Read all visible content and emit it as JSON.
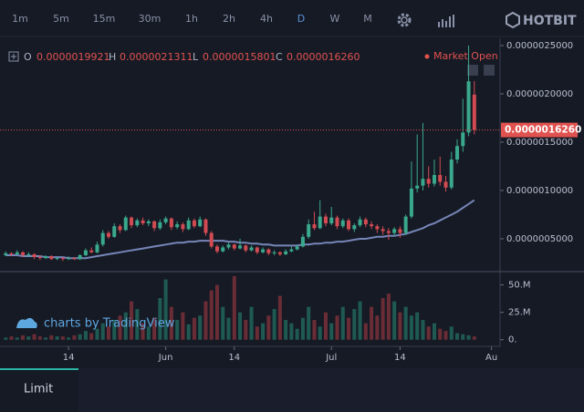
{
  "toolbar": {
    "intervals": [
      "1m",
      "5m",
      "15m",
      "30m",
      "1h",
      "2h",
      "4h",
      "D",
      "W",
      "M"
    ],
    "active_index": 7
  },
  "logo": "HOTBIT",
  "legend": {
    "o_label": "O",
    "o": "0.0000019921",
    "h_label": "H",
    "h": "0.0000021311",
    "l_label": "L",
    "l": "0.0000015801",
    "c_label": "C",
    "c": "0.0000016260"
  },
  "status": "Market Open",
  "watermark": "charts by TradingView",
  "footer_tab": "Limit",
  "chart_data": {
    "type": "candlestick",
    "up_color": "#3aa88c",
    "down_color": "#d24b52",
    "xlim": [
      -1,
      86.5
    ],
    "xticks": [
      {
        "value": 11,
        "label": "14"
      },
      {
        "value": 28,
        "label": "Jun"
      },
      {
        "value": 40,
        "label": "14"
      },
      {
        "value": 57,
        "label": "Jul"
      },
      {
        "value": 69,
        "label": "14"
      },
      {
        "value": 85,
        "label": "Au"
      }
    ],
    "ylim": [
      1.6e-07,
      2.575e-06
    ],
    "yticks": [
      {
        "value": 5e-07,
        "label": "0.0000005000"
      },
      {
        "value": 1e-06,
        "label": "0.0000010000"
      },
      {
        "value": 1.5e-06,
        "label": "0.0000015000"
      },
      {
        "value": 2e-06,
        "label": "0.0000020000"
      },
      {
        "value": 2.5e-06,
        "label": "0.0000025000"
      }
    ],
    "last_price": {
      "value": 1.626e-06,
      "label": "0.0000016260",
      "color": "#e0524f"
    },
    "open": [
      3.3e-07,
      3.5e-07,
      3.4e-07,
      3.6e-07,
      3.3e-07,
      3.4e-07,
      3.1e-07,
      3e-07,
      3.2e-07,
      2.9e-07,
      3e-07,
      2.9e-07,
      3e-07,
      2.9e-07,
      3.3e-07,
      3.8e-07,
      3.6e-07,
      4.4e-07,
      5.6e-07,
      5.2e-07,
      6.3e-07,
      5.9e-07,
      7.2e-07,
      6.4e-07,
      6.9e-07,
      6.6e-07,
      6.8e-07,
      6.1e-07,
      6.7e-07,
      7.1e-07,
      6.2e-07,
      6.5e-07,
      6e-07,
      6.9e-07,
      6.3e-07,
      7e-07,
      5.6e-07,
      4.2e-07,
      3.7e-07,
      4.1e-07,
      4.4e-07,
      4e-07,
      4.3e-07,
      3.8e-07,
      4.1e-07,
      3.6e-07,
      3.9e-07,
      3.5e-07,
      3.6e-07,
      3.4e-07,
      3.7e-07,
      3.9e-07,
      4.2e-07,
      5.2e-07,
      6.5e-07,
      6.1e-07,
      7.3e-07,
      6.6e-07,
      7.2e-07,
      6.3e-07,
      6.9e-07,
      6e-07,
      6.4e-07,
      7e-07,
      6.5e-07,
      6.3e-07,
      6e-07,
      5.8e-07,
      5.6e-07,
      6e-07,
      5.6e-07,
      7.3e-07,
      1.02e-06,
      1.05e-06,
      1.12e-06,
      1.07e-06,
      1.16e-06,
      1.09e-06,
      1.03e-06,
      1.32e-06,
      1.46e-06,
      1.6e-06,
      1.9921e-06
    ],
    "high": [
      3.7e-07,
      3.6e-07,
      3.8e-07,
      3.7e-07,
      3.6e-07,
      3.5e-07,
      3.3e-07,
      3.3e-07,
      3.3e-07,
      3.1e-07,
      3.1e-07,
      3.2e-07,
      3.1e-07,
      3.4e-07,
      4e-07,
      4.1e-07,
      4.7e-07,
      5.9e-07,
      5.8e-07,
      6.6e-07,
      6.5e-07,
      7.4e-07,
      7.3e-07,
      7.1e-07,
      7.2e-07,
      7e-07,
      6.9e-07,
      7e-07,
      7.3e-07,
      7.2e-07,
      6.8e-07,
      6.7e-07,
      7.2e-07,
      7.1e-07,
      7.3e-07,
      7.1e-07,
      5.8e-07,
      4.4e-07,
      4.3e-07,
      4.6e-07,
      4.5e-07,
      5e-07,
      4.4e-07,
      4.3e-07,
      4.2e-07,
      4.1e-07,
      4e-07,
      3.8e-07,
      3.7e-07,
      3.9e-07,
      4.2e-07,
      4.4e-07,
      5.5e-07,
      7e-07,
      7.8e-07,
      9e-07,
      7.6e-07,
      8.3e-07,
      7.4e-07,
      7.1e-07,
      7.1e-07,
      6.6e-07,
      7.3e-07,
      7.2e-07,
      6.8e-07,
      6.5e-07,
      6.3e-07,
      6.1e-07,
      6.2e-07,
      6.3e-07,
      7.5e-07,
      1.3e-06,
      1.58e-06,
      1.7e-06,
      1.25e-06,
      1.32e-06,
      1.35e-06,
      1.15e-06,
      1.4e-06,
      1.53e-06,
      1.95e-06,
      2.5e-06,
      2.1311e-06
    ],
    "low": [
      3.2e-07,
      3.2e-07,
      3.3e-07,
      3.1e-07,
      3.1e-07,
      2.9e-07,
      2.8e-07,
      2.9e-07,
      2.8e-07,
      2.8e-07,
      2.7e-07,
      2.8e-07,
      2.8e-07,
      2.8e-07,
      3.2e-07,
      3.5e-07,
      3.5e-07,
      4.2e-07,
      5e-07,
      5.1e-07,
      5.6e-07,
      5.8e-07,
      6.1e-07,
      6.2e-07,
      6.4e-07,
      6.3e-07,
      5.8e-07,
      5.9e-07,
      6.5e-07,
      5.9e-07,
      6e-07,
      5.7e-07,
      5.9e-07,
      6.1e-07,
      6.2e-07,
      5.3e-07,
      4e-07,
      3.5e-07,
      3.6e-07,
      3.9e-07,
      3.8e-07,
      3.9e-07,
      3.6e-07,
      3.7e-07,
      3.4e-07,
      3.5e-07,
      3.3e-07,
      3.3e-07,
      3.2e-07,
      3.3e-07,
      3.6e-07,
      3.8e-07,
      4.1e-07,
      5e-07,
      5.9e-07,
      6e-07,
      6.3e-07,
      6.4e-07,
      6e-07,
      6.1e-07,
      5.8e-07,
      5.7e-07,
      6.2e-07,
      6.2e-07,
      6e-07,
      5.6e-07,
      5.4e-07,
      4.9e-07,
      5.3e-07,
      5.1e-07,
      5.4e-07,
      7.1e-07,
      9.8e-07,
      1e-06,
      1.03e-06,
      1.04e-06,
      1.05e-06,
      9.9e-07,
      1.01e-06,
      1.28e-06,
      1.4e-06,
      1.56e-06,
      1.5801e-06
    ],
    "close": [
      3.5e-07,
      3.4e-07,
      3.6e-07,
      3.3e-07,
      3.4e-07,
      3.1e-07,
      3e-07,
      3.2e-07,
      2.9e-07,
      3e-07,
      2.9e-07,
      3e-07,
      2.9e-07,
      3.3e-07,
      3.8e-07,
      3.6e-07,
      4.4e-07,
      5.6e-07,
      5.2e-07,
      6.3e-07,
      5.9e-07,
      7.2e-07,
      6.4e-07,
      6.9e-07,
      6.6e-07,
      6.8e-07,
      6.1e-07,
      6.7e-07,
      7.1e-07,
      6.2e-07,
      6.5e-07,
      6e-07,
      6.9e-07,
      6.3e-07,
      7e-07,
      5.6e-07,
      4.2e-07,
      3.7e-07,
      4.1e-07,
      4.4e-07,
      4e-07,
      4.3e-07,
      3.8e-07,
      4.1e-07,
      3.6e-07,
      3.9e-07,
      3.5e-07,
      3.6e-07,
      3.4e-07,
      3.7e-07,
      3.9e-07,
      4.2e-07,
      5.2e-07,
      6.5e-07,
      6.1e-07,
      7.3e-07,
      6.6e-07,
      7.2e-07,
      6.3e-07,
      6.9e-07,
      6e-07,
      6.4e-07,
      7e-07,
      6.5e-07,
      6.3e-07,
      6e-07,
      5.8e-07,
      5.6e-07,
      6e-07,
      5.6e-07,
      7.3e-07,
      1.02e-06,
      1.05e-06,
      1.12e-06,
      1.07e-06,
      1.16e-06,
      1.09e-06,
      1.03e-06,
      1.32e-06,
      1.46e-06,
      1.6e-06,
      2.13e-06,
      1.626e-06
    ],
    "ma": {
      "color": "#7686b8",
      "values": [
        3.3e-07,
        3.3e-07,
        3.3e-07,
        3.2e-07,
        3.2e-07,
        3.2e-07,
        3.2e-07,
        3.1e-07,
        3.1e-07,
        3.1e-07,
        3.1e-07,
        3e-07,
        3e-07,
        3e-07,
        3e-07,
        3.1e-07,
        3.2e-07,
        3.3e-07,
        3.4e-07,
        3.5e-07,
        3.6e-07,
        3.7e-07,
        3.8e-07,
        3.9e-07,
        4e-07,
        4.1e-07,
        4.2e-07,
        4.3e-07,
        4.4e-07,
        4.5e-07,
        4.6e-07,
        4.6e-07,
        4.7e-07,
        4.7e-07,
        4.8e-07,
        4.8e-07,
        4.8e-07,
        4.8e-07,
        4.8e-07,
        4.7e-07,
        4.7e-07,
        4.6e-07,
        4.6e-07,
        4.5e-07,
        4.5e-07,
        4.4e-07,
        4.4e-07,
        4.3e-07,
        4.3e-07,
        4.3e-07,
        4.3e-07,
        4.3e-07,
        4.4e-07,
        4.4e-07,
        4.5e-07,
        4.5e-07,
        4.6e-07,
        4.6e-07,
        4.7e-07,
        4.7e-07,
        4.8e-07,
        4.9e-07,
        5e-07,
        5e-07,
        5.1e-07,
        5.2e-07,
        5.2e-07,
        5.3e-07,
        5.3e-07,
        5.4e-07,
        5.5e-07,
        5.7e-07,
        5.9e-07,
        6.1e-07,
        6.4e-07,
        6.6e-07,
        6.9e-07,
        7.2e-07,
        7.5e-07,
        7.8e-07,
        8.2e-07,
        8.6e-07,
        9e-07
      ]
    },
    "volume": {
      "up_color": "#1f5a52",
      "down_color": "#6a2d36",
      "ylim": [
        -4.4,
        58.8
      ],
      "yticks": [
        {
          "value": 0,
          "label": "0."
        },
        {
          "value": 25,
          "label": "25.M"
        },
        {
          "value": 50,
          "label": "50.M"
        }
      ],
      "values": [
        2,
        3,
        2,
        4,
        3,
        5,
        3,
        2,
        4,
        3,
        3,
        2,
        4,
        5,
        8,
        6,
        10,
        15,
        12,
        18,
        22,
        25,
        35,
        28,
        15,
        12,
        20,
        38,
        55,
        30,
        18,
        25,
        14,
        20,
        22,
        35,
        45,
        50,
        30,
        20,
        58,
        25,
        18,
        30,
        12,
        15,
        22,
        28,
        40,
        18,
        15,
        10,
        20,
        30,
        18,
        12,
        25,
        15,
        22,
        30,
        20,
        28,
        35,
        15,
        30,
        22,
        38,
        42,
        35,
        25,
        30,
        22,
        25,
        18,
        12,
        15,
        10,
        8,
        12,
        6,
        5,
        4,
        3
      ]
    }
  }
}
